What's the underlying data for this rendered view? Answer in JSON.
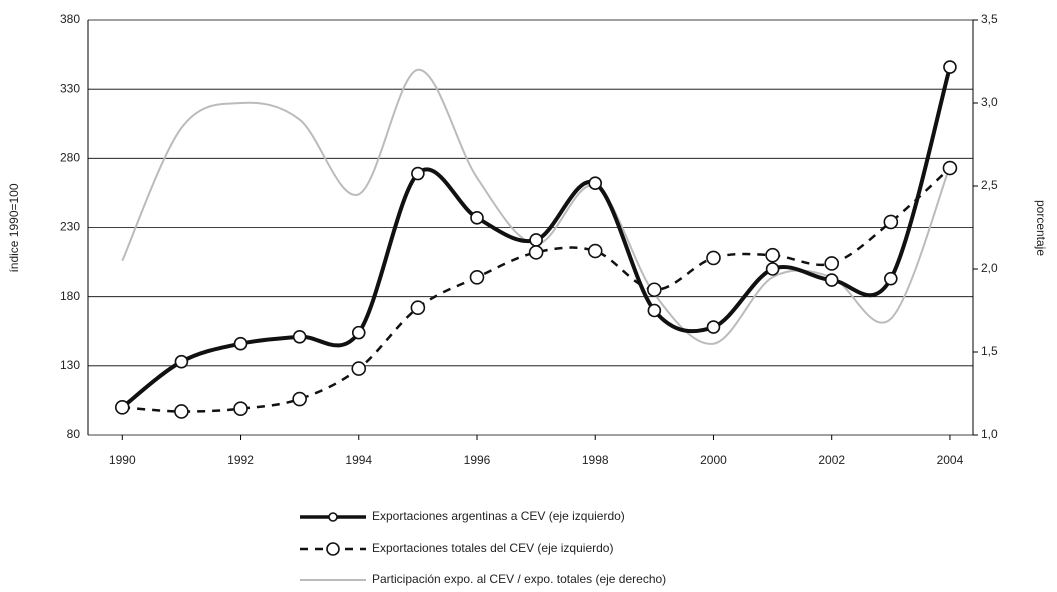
{
  "chart_data": {
    "type": "line",
    "y_label": "índice 1990=100",
    "y2_label": "porcentaje",
    "x": [
      1990,
      1991,
      1992,
      1993,
      1994,
      1995,
      1996,
      1997,
      1998,
      1999,
      2000,
      2001,
      2002,
      2003,
      2004
    ],
    "xlim": [
      1989.42,
      2004.39
    ],
    "xticks": [
      1990,
      1992,
      1994,
      1996,
      1998,
      2000,
      2002,
      2004
    ],
    "ylim": [
      80,
      380
    ],
    "yticks": [
      80,
      130,
      180,
      230,
      280,
      330,
      380
    ],
    "y2lim": [
      1.0,
      3.5
    ],
    "y2ticks": [
      {
        "value": 1.0,
        "label": "1,0"
      },
      {
        "value": 1.5,
        "label": "1,5"
      },
      {
        "value": 2.0,
        "label": "2,0"
      },
      {
        "value": 2.5,
        "label": "2,5"
      },
      {
        "value": 3.0,
        "label": "3,0"
      },
      {
        "value": 3.5,
        "label": "3,5"
      }
    ],
    "grid": true,
    "series": [
      {
        "name": "Exportaciones argentinas a CEV (eje izquierdo)",
        "color": "#111111",
        "style": "solid",
        "values": [
          100,
          133,
          146,
          151,
          154,
          269,
          237,
          221,
          262,
          170,
          158,
          200,
          192,
          193,
          346
        ]
      },
      {
        "name": "Exportaciones totales del CEV (eje izquierdo)",
        "color": "#111111",
        "style": "dashed",
        "values": [
          100,
          97,
          99,
          106,
          128,
          172,
          194,
          212,
          213,
          185,
          208,
          210,
          204,
          234,
          273
        ]
      },
      {
        "name": "Participación expo. al CEV / expo. totales (eje derecho)",
        "color": "#bbbbbb",
        "style": "plain",
        "axis": "y2",
        "values": [
          2.05,
          2.85,
          3.0,
          2.9,
          2.45,
          3.2,
          2.55,
          2.15,
          2.5,
          1.85,
          1.55,
          1.95,
          1.95,
          1.7,
          2.62
        ]
      }
    ]
  }
}
